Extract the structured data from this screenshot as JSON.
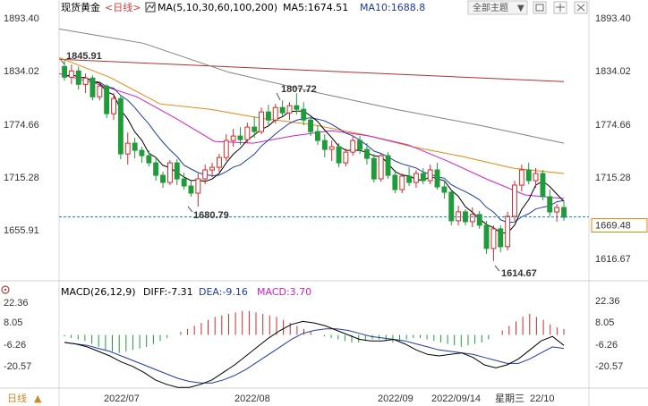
{
  "header": {
    "instrument": "现货黄金",
    "period_tag": "<日线>",
    "ma_label": "MA(5,10,30,60,100,200)",
    "ma5_label": "MA5:1674.51",
    "ma10_label": "MA10:1688.8",
    "theme_button": "全部主题",
    "theme_arrow": "▼",
    "icons": [
      "chart-layout-icon",
      "window-icon",
      "collapse-icon",
      "close-icon"
    ]
  },
  "macd_header": {
    "title": "MACD(26,12,9)",
    "diff": "DIFF:-7.31",
    "dea": "DEA:-9.16",
    "macd": "MACD:3.70"
  },
  "footer": {
    "period_button": "日线",
    "period_arrow": "▲",
    "dates": [
      "2022/07",
      "2022/08",
      "2022/09",
      "22/10"
    ],
    "crosshair_date": "2022/09/14",
    "crosshair_weekday": "星期三"
  },
  "colors": {
    "up": "#d22b2b",
    "down": "#1f9b3a",
    "ma5": "#000000",
    "ma10": "#1e3aa8",
    "ma30": "#d020c8",
    "ma60": "#e8860c",
    "ma100": "#808080",
    "ma200": "#b03030",
    "dea": "#1e3aa8",
    "diff": "#000000",
    "last_price_line": "#1f8fb0",
    "crosshair_date": "#c98a2a"
  },
  "chart_data": [
    {
      "type": "candlestick",
      "title": "现货黄金",
      "y_ticks": [
        "1893.40",
        "1834.02",
        "1774.66",
        "1715.28",
        "1655.91"
      ],
      "ylim": [
        1616.67,
        1893.4
      ],
      "grid": false,
      "annotations": [
        {
          "text": "1845.91",
          "value": 1845.91,
          "kind": "high"
        },
        {
          "text": "1807.72",
          "value": 1807.72,
          "kind": "high"
        },
        {
          "text": "1680.79",
          "value": 1680.79,
          "kind": "low"
        },
        {
          "text": "1614.67",
          "value": 1614.67,
          "kind": "low"
        }
      ],
      "price_labels": [
        {
          "text": "1669.48",
          "value": 1669.48,
          "note": "last price"
        },
        {
          "text": "1616.67",
          "value": 1616.67,
          "note": "axis minimum"
        }
      ],
      "candles": [
        {
          "o": 1838,
          "h": 1846,
          "l": 1822,
          "c": 1826
        },
        {
          "o": 1826,
          "h": 1840,
          "l": 1818,
          "c": 1833
        },
        {
          "o": 1833,
          "h": 1838,
          "l": 1812,
          "c": 1818
        },
        {
          "o": 1818,
          "h": 1830,
          "l": 1808,
          "c": 1825
        },
        {
          "o": 1825,
          "h": 1828,
          "l": 1800,
          "c": 1804
        },
        {
          "o": 1804,
          "h": 1820,
          "l": 1800,
          "c": 1816
        },
        {
          "o": 1816,
          "h": 1818,
          "l": 1780,
          "c": 1785
        },
        {
          "o": 1785,
          "h": 1808,
          "l": 1778,
          "c": 1802
        },
        {
          "o": 1802,
          "h": 1806,
          "l": 1734,
          "c": 1740
        },
        {
          "o": 1740,
          "h": 1764,
          "l": 1728,
          "c": 1752
        },
        {
          "o": 1752,
          "h": 1758,
          "l": 1735,
          "c": 1744
        },
        {
          "o": 1744,
          "h": 1748,
          "l": 1730,
          "c": 1738
        },
        {
          "o": 1738,
          "h": 1744,
          "l": 1726,
          "c": 1730
        },
        {
          "o": 1730,
          "h": 1736,
          "l": 1710,
          "c": 1716
        },
        {
          "o": 1716,
          "h": 1720,
          "l": 1702,
          "c": 1708
        },
        {
          "o": 1708,
          "h": 1733,
          "l": 1705,
          "c": 1730
        },
        {
          "o": 1730,
          "h": 1734,
          "l": 1705,
          "c": 1712
        },
        {
          "o": 1712,
          "h": 1719,
          "l": 1700,
          "c": 1704
        },
        {
          "o": 1704,
          "h": 1710,
          "l": 1692,
          "c": 1696
        },
        {
          "o": 1696,
          "h": 1718,
          "l": 1681,
          "c": 1712
        },
        {
          "o": 1712,
          "h": 1728,
          "l": 1706,
          "c": 1722
        },
        {
          "o": 1722,
          "h": 1730,
          "l": 1714,
          "c": 1725
        },
        {
          "o": 1725,
          "h": 1740,
          "l": 1720,
          "c": 1736
        },
        {
          "o": 1736,
          "h": 1762,
          "l": 1732,
          "c": 1755
        },
        {
          "o": 1755,
          "h": 1768,
          "l": 1748,
          "c": 1760
        },
        {
          "o": 1760,
          "h": 1770,
          "l": 1750,
          "c": 1756
        },
        {
          "o": 1756,
          "h": 1775,
          "l": 1752,
          "c": 1770
        },
        {
          "o": 1770,
          "h": 1782,
          "l": 1758,
          "c": 1765
        },
        {
          "o": 1765,
          "h": 1792,
          "l": 1762,
          "c": 1787
        },
        {
          "o": 1787,
          "h": 1795,
          "l": 1772,
          "c": 1778
        },
        {
          "o": 1778,
          "h": 1796,
          "l": 1774,
          "c": 1792
        },
        {
          "o": 1792,
          "h": 1800,
          "l": 1782,
          "c": 1786
        },
        {
          "o": 1786,
          "h": 1798,
          "l": 1778,
          "c": 1794
        },
        {
          "o": 1794,
          "h": 1808,
          "l": 1784,
          "c": 1790
        },
        {
          "o": 1790,
          "h": 1798,
          "l": 1772,
          "c": 1778
        },
        {
          "o": 1778,
          "h": 1782,
          "l": 1760,
          "c": 1765
        },
        {
          "o": 1765,
          "h": 1772,
          "l": 1750,
          "c": 1755
        },
        {
          "o": 1755,
          "h": 1762,
          "l": 1736,
          "c": 1745
        },
        {
          "o": 1745,
          "h": 1755,
          "l": 1732,
          "c": 1748
        },
        {
          "o": 1748,
          "h": 1752,
          "l": 1725,
          "c": 1730
        },
        {
          "o": 1730,
          "h": 1746,
          "l": 1726,
          "c": 1742
        },
        {
          "o": 1742,
          "h": 1760,
          "l": 1738,
          "c": 1755
        },
        {
          "o": 1755,
          "h": 1760,
          "l": 1740,
          "c": 1745
        },
        {
          "o": 1745,
          "h": 1752,
          "l": 1728,
          "c": 1735
        },
        {
          "o": 1735,
          "h": 1740,
          "l": 1708,
          "c": 1712
        },
        {
          "o": 1712,
          "h": 1740,
          "l": 1709,
          "c": 1738
        },
        {
          "o": 1738,
          "h": 1742,
          "l": 1712,
          "c": 1716
        },
        {
          "o": 1716,
          "h": 1722,
          "l": 1696,
          "c": 1700
        },
        {
          "o": 1700,
          "h": 1718,
          "l": 1696,
          "c": 1715
        },
        {
          "o": 1715,
          "h": 1725,
          "l": 1704,
          "c": 1708
        },
        {
          "o": 1708,
          "h": 1722,
          "l": 1702,
          "c": 1718
        },
        {
          "o": 1718,
          "h": 1724,
          "l": 1706,
          "c": 1710
        },
        {
          "o": 1710,
          "h": 1728,
          "l": 1706,
          "c": 1722
        },
        {
          "o": 1722,
          "h": 1730,
          "l": 1700,
          "c": 1703
        },
        {
          "o": 1703,
          "h": 1710,
          "l": 1690,
          "c": 1697
        },
        {
          "o": 1697,
          "h": 1700,
          "l": 1660,
          "c": 1665
        },
        {
          "o": 1665,
          "h": 1682,
          "l": 1660,
          "c": 1675
        },
        {
          "o": 1675,
          "h": 1678,
          "l": 1660,
          "c": 1664
        },
        {
          "o": 1664,
          "h": 1680,
          "l": 1658,
          "c": 1672
        },
        {
          "o": 1672,
          "h": 1676,
          "l": 1656,
          "c": 1660
        },
        {
          "o": 1660,
          "h": 1665,
          "l": 1628,
          "c": 1634
        },
        {
          "o": 1634,
          "h": 1660,
          "l": 1620,
          "c": 1656
        },
        {
          "o": 1656,
          "h": 1660,
          "l": 1630,
          "c": 1636
        },
        {
          "o": 1636,
          "h": 1675,
          "l": 1632,
          "c": 1670
        },
        {
          "o": 1670,
          "h": 1710,
          "l": 1665,
          "c": 1705
        },
        {
          "o": 1705,
          "h": 1728,
          "l": 1698,
          "c": 1722
        },
        {
          "o": 1722,
          "h": 1730,
          "l": 1706,
          "c": 1710
        },
        {
          "o": 1710,
          "h": 1724,
          "l": 1702,
          "c": 1718
        },
        {
          "o": 1718,
          "h": 1722,
          "l": 1688,
          "c": 1692
        },
        {
          "o": 1692,
          "h": 1700,
          "l": 1670,
          "c": 1675
        },
        {
          "o": 1675,
          "h": 1684,
          "l": 1664,
          "c": 1680
        },
        {
          "o": 1680,
          "h": 1688,
          "l": 1665,
          "c": 1669
        }
      ],
      "ma_series": [
        {
          "name": "MA200",
          "values": [
            1846,
            1821
          ]
        },
        {
          "name": "MA100",
          "values": [
            1880,
            1864,
            1832,
            1810,
            1790,
            1772,
            1752
          ]
        },
        {
          "name": "MA60",
          "values": [
            1848,
            1826,
            1796,
            1790,
            1780,
            1773,
            1762,
            1748,
            1737,
            1724,
            1718
          ]
        },
        {
          "name": "MA30",
          "values": [
            1830,
            1818,
            1804,
            1780,
            1754,
            1752,
            1760,
            1766,
            1760,
            1750,
            1732,
            1712,
            1694,
            1690
          ]
        }
      ]
    },
    {
      "type": "bar",
      "title": "MACD(26,12,9)",
      "y_ticks": [
        "22.36",
        "8.05",
        "-6.26",
        "-20.57"
      ],
      "ylim": [
        -30,
        30
      ],
      "grid": false,
      "series": [
        {
          "name": "MACD",
          "values": [
            -1,
            -2,
            -3,
            -4,
            -6,
            -8,
            -10,
            -11,
            -12,
            -11,
            -10,
            -9,
            -8,
            -6,
            -4,
            -2,
            0,
            2,
            4,
            6,
            8,
            10,
            12,
            13,
            14,
            15,
            16,
            16,
            15,
            14,
            13,
            12,
            10,
            8,
            6,
            4,
            2,
            0,
            -1,
            -2,
            -3,
            -4,
            -5,
            -5,
            -4,
            -3,
            -3,
            -4,
            -5,
            -4,
            -3,
            -2,
            -2,
            -3,
            -4,
            -5,
            -6,
            -7,
            -8,
            -7,
            -6,
            -5,
            -3,
            0,
            3,
            6,
            9,
            12,
            14,
            12,
            10,
            7,
            5,
            4
          ]
        },
        {
          "name": "DIFF",
          "values": [
            -5,
            -6,
            -8,
            -11,
            -14,
            -18,
            -21,
            -25,
            -30,
            -33,
            -35,
            -35,
            -33,
            -30,
            -25,
            -20,
            -14,
            -8,
            -2,
            3,
            7,
            9,
            8,
            6,
            3,
            0,
            -3,
            -4,
            -4,
            -3,
            -6,
            -10,
            -13,
            -14,
            -13,
            -12,
            -15,
            -20,
            -22,
            -20,
            -16,
            -10,
            -4,
            -1,
            -7
          ]
        },
        {
          "name": "DEA",
          "values": [
            -5,
            -6,
            -7,
            -9,
            -11,
            -14,
            -17,
            -20,
            -23,
            -26,
            -29,
            -31,
            -32,
            -32,
            -30,
            -27,
            -23,
            -18,
            -13,
            -8,
            -3,
            1,
            3,
            4,
            4,
            3,
            1,
            -1,
            -2,
            -3,
            -4,
            -6,
            -8,
            -10,
            -11,
            -12,
            -13,
            -15,
            -17,
            -19,
            -19,
            -16,
            -12,
            -8,
            -9
          ]
        }
      ]
    }
  ]
}
